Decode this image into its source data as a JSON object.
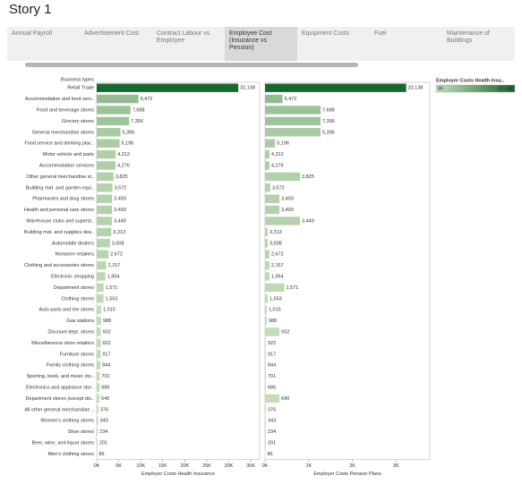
{
  "title": "Story 1",
  "tabs": [
    "Annual Payroll",
    "Advertisement Cost",
    "Contract Labour vs Employee",
    "Employee Cost (Insurance vs Pension)",
    "Equipment Costs",
    "Fuel",
    "Maintenance of Buildings"
  ],
  "selected_tab": 3,
  "chart_data": {
    "type": "bar",
    "row_header": "Business types",
    "categories": [
      "Retail Trade",
      "Accommodation and food serv..",
      "Food and beverage stores",
      "Grocery stores",
      "General merchandise stores",
      "Food service and drinking plac..",
      "Motor vehicle and parts",
      "Accommodation services",
      "Other general merchandise st..",
      "Building mat. and garden equi..",
      "Pharmacies and drug stores",
      "Health and personal care stores",
      "Warehouse clubs and superst..",
      "Building mat. and supplies dea..",
      "Automobile dealers",
      "Nonstore retailers",
      "Clothing and accessories stores",
      "Electronic shopping",
      "Department stores",
      "Clothing stores",
      "Auto parts and tire stores",
      "Gas stations",
      "Discount dept. stores",
      "Miscellaneous store retailers",
      "Furniture stores",
      "Family clothing stores",
      "Sporting, book, and music sto..",
      "Electronics and appliance stor..",
      "Department stores (except dis..",
      "All other general merchandise ..",
      "Women's clothing stores",
      "Shoe stores",
      "Beer, wine, and liquor stores",
      "Men's clothing stores"
    ],
    "series": [
      {
        "name": "Employer Costs Health Insurance",
        "values": [
          32138,
          9472,
          7688,
          7356,
          5396,
          5196,
          4312,
          4276,
          3825,
          3572,
          3493,
          3493,
          3449,
          3313,
          3008,
          2672,
          2157,
          1954,
          1571,
          1553,
          1015,
          988,
          932,
          922,
          917,
          844,
          701,
          686,
          640,
          376,
          343,
          234,
          201,
          86
        ],
        "value_labels": [
          "32,138",
          "9,472",
          "7,688",
          "7,356",
          "5,396",
          "5,196",
          "4,312",
          "4,276",
          "3,825",
          "3,572",
          "3,493",
          "3,493",
          "3,449",
          "3,313",
          "3,008",
          "2,672",
          "2,157",
          "1,954",
          "1,571",
          "1,553",
          "1,015",
          "988",
          "932",
          "922",
          "917",
          "844",
          "701",
          "686",
          "640",
          "376",
          "343",
          "234",
          "201",
          "86"
        ],
        "xlim": [
          0,
          37000
        ],
        "xticks": [
          {
            "value": 0,
            "label": "0K"
          },
          {
            "value": 5000,
            "label": "5K"
          },
          {
            "value": 10000,
            "label": "10K"
          },
          {
            "value": 15000,
            "label": "15K"
          },
          {
            "value": 20000,
            "label": "20K"
          },
          {
            "value": 25000,
            "label": "25K"
          },
          {
            "value": 30000,
            "label": "30K"
          },
          {
            "value": 35000,
            "label": "35K"
          }
        ]
      },
      {
        "name": "Employer Costs Pension Plans",
        "values": [
          3230,
          400,
          1270,
          1270,
          1270,
          230,
          100,
          100,
          800,
          120,
          330,
          330,
          800,
          60,
          60,
          100,
          100,
          100,
          440,
          60,
          40,
          40,
          330,
          20,
          20,
          20,
          20,
          20,
          330,
          20,
          20,
          20,
          20,
          10
        ],
        "xlim": [
          0,
          3770
        ],
        "xticks": [
          {
            "value": 0,
            "label": "0K"
          },
          {
            "value": 1000,
            "label": "1K"
          },
          {
            "value": 2000,
            "label": "2K"
          },
          {
            "value": 3000,
            "label": "3K"
          }
        ]
      }
    ],
    "color_legend": {
      "title": "Employer Costs Health Insu..",
      "colors": [
        "#c6dfba",
        "#17672f"
      ],
      "ticks": [
        86,
        {
          "value": 32138,
          "label": "32,138"
        }
      ]
    }
  }
}
